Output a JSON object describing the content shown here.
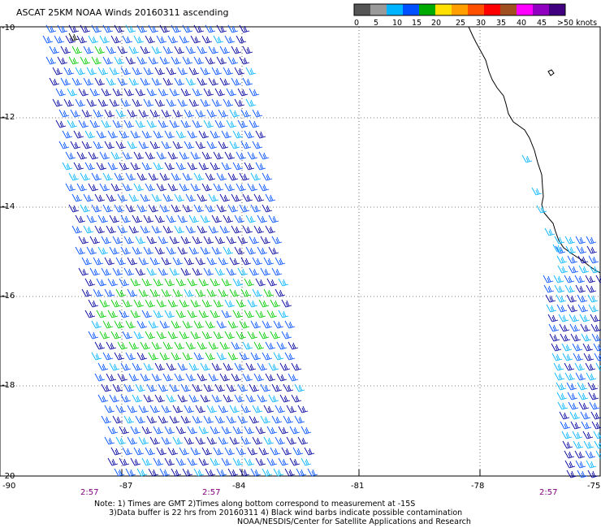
{
  "title": "ASCAT 25KM NOAA Winds 20160311 ascending",
  "legend": {
    "ticks": [
      "0",
      "5",
      "10",
      "15",
      "20",
      "25",
      "30",
      "35",
      "40",
      "45",
      ">50 knots"
    ],
    "colors": [
      "#555555",
      "#9a9a9a",
      "#00b4ff",
      "#0050ff",
      "#00aa00",
      "#ffe000",
      "#ffa000",
      "#ff5000",
      "#ff0000",
      "#a05020",
      "#ff00ff",
      "#9000c0",
      "#400080"
    ]
  },
  "map": {
    "lon_labels": [
      "-90",
      "-87",
      "-84",
      "-81",
      "-78",
      "-75"
    ],
    "lat_labels": [
      "-10",
      "-12",
      "-14",
      "-16",
      "-18",
      "-20"
    ],
    "time_labels": [
      "2:57",
      "2:57",
      "2:57"
    ],
    "barb_colors": {
      "low": "#00b4ff",
      "mid": "#0050ff",
      "dark": "#0000a0",
      "fast": "#00cc00",
      "contam": "#000000"
    }
  },
  "notes": {
    "line1": "Note: 1) Times are GMT 2)Times along bottom correspond to measurement at -15S",
    "line2": "      3)Data buffer is 22 hrs from 20160311 4) Black wind barbs indicate possible contamination",
    "line3": "NOAA/NESDIS/Center for Satellite Applications and Research"
  }
}
